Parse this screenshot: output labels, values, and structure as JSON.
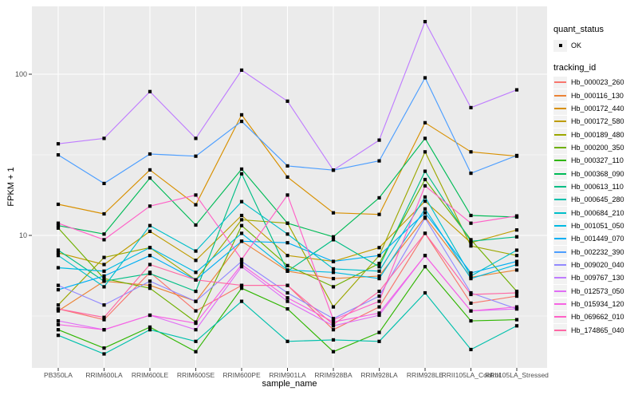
{
  "colors": {
    "panel_bg": "#EBEBEB",
    "grid_major": "#FFFFFF",
    "grid_minor": "#FFFFFF",
    "tick_label": "#4D4D4D",
    "tick_mark": "#333333",
    "point": "#000000",
    "legend_key_bg": "#F2F2F2",
    "text": "#000000"
  },
  "chart_data": {
    "type": "line",
    "title": "",
    "xlabel": "sample_name",
    "ylabel": "FPKM + 1",
    "y_scale": "log10",
    "y_ticks": [
      10,
      100
    ],
    "y_minor": [
      3.1623,
      31.623
    ],
    "ylim": [
      1.5,
      265
    ],
    "grid": true,
    "legend_position": "right",
    "point_shape": "filled-black-square",
    "legend": {
      "quant_status_title": "quant_status",
      "quant_status_items": [
        "OK"
      ],
      "tracking_id_title": "tracking_id"
    },
    "x_categories": [
      "PB350LA",
      "RRIM600LA",
      "RRIM600LE",
      "RRIM600SE",
      "RRIM600PE",
      "RRIM901LA",
      "RRIM928BA",
      "RRIM928LA",
      "RRIM928LE",
      "RRII105LA_Control",
      "RRII105LA_Stressed"
    ],
    "series": [
      {
        "name": "Hb_000023_260",
        "color": "#F8766D",
        "values": [
          3.5,
          3.0,
          5.9,
          3.4,
          4.9,
          4.9,
          2.6,
          3.6,
          10.3,
          3.8,
          4.2
        ]
      },
      {
        "name": "Hb_000116_130",
        "color": "#EB8335",
        "values": [
          3.4,
          5.2,
          4.9,
          3.9,
          9.2,
          6.0,
          5.4,
          5.6,
          13.0,
          5.5,
          6.1
        ]
      },
      {
        "name": "Hb_000172_440",
        "color": "#D89000",
        "values": [
          15.6,
          13.6,
          25.5,
          15.5,
          56,
          23,
          13.8,
          13.5,
          50,
          33,
          31
        ]
      },
      {
        "name": "Hb_000172_580",
        "color": "#BE9C00",
        "values": [
          7.8,
          6.6,
          10.6,
          7.0,
          13.3,
          7.5,
          6.9,
          8.4,
          16.3,
          9.0,
          10.8
        ]
      },
      {
        "name": "Hb_000189_480",
        "color": "#9CA700",
        "values": [
          3.7,
          7.3,
          8.4,
          5.3,
          12.5,
          11.9,
          3.6,
          7.5,
          33,
          8.6,
          7.5
        ]
      },
      {
        "name": "Hb_000200_350",
        "color": "#6FB000",
        "values": [
          11.1,
          5.4,
          4.7,
          2.9,
          11.5,
          6.5,
          4.8,
          6.7,
          22.2,
          9.4,
          4.5
        ]
      },
      {
        "name": "Hb_000327_110",
        "color": "#2FB600",
        "values": [
          2.6,
          2.0,
          2.7,
          1.9,
          4.7,
          3.5,
          1.9,
          2.5,
          6.4,
          2.95,
          3.0
        ]
      },
      {
        "name": "Hb_000368_090",
        "color": "#00BB57",
        "values": [
          11.5,
          10.2,
          22.7,
          11.6,
          25.8,
          11.9,
          9.8,
          17.1,
          40,
          13.3,
          13.0
        ]
      },
      {
        "name": "Hb_000613_110",
        "color": "#00BE85",
        "values": [
          8.1,
          5.2,
          5.8,
          4.5,
          24.1,
          6.0,
          9.4,
          6.4,
          25,
          9.2,
          9.8
        ]
      },
      {
        "name": "Hb_000645_280",
        "color": "#00C0AC",
        "values": [
          2.4,
          1.84,
          2.6,
          2.2,
          3.9,
          2.2,
          2.25,
          2.2,
          4.4,
          1.96,
          2.75
        ]
      },
      {
        "name": "Hb_000684_210",
        "color": "#00BFC9",
        "values": [
          7.5,
          4.8,
          11.5,
          8.0,
          16.2,
          10.2,
          6.2,
          6.0,
          17.3,
          5.6,
          8.1
        ]
      },
      {
        "name": "Hb_001051_050",
        "color": "#00BAE2",
        "values": [
          6.3,
          6.0,
          8.4,
          5.9,
          10.3,
          6.1,
          5.9,
          5.4,
          14.6,
          5.4,
          6.6
        ]
      },
      {
        "name": "Hb_001449_070",
        "color": "#00AFF4",
        "values": [
          4.6,
          5.6,
          7.5,
          5.3,
          9.2,
          9.0,
          6.9,
          7.5,
          13.8,
          5.85,
          6.9
        ]
      },
      {
        "name": "Hb_002232_390",
        "color": "#4C9EFF",
        "values": [
          31.6,
          21,
          32,
          31,
          51,
          27,
          25.4,
          29,
          95,
          24.3,
          31.3
        ]
      },
      {
        "name": "Hb_009020_040",
        "color": "#9289FF",
        "values": [
          4.9,
          3.7,
          5.2,
          3.9,
          6.9,
          4.4,
          3.05,
          4.2,
          12.8,
          4.4,
          3.5
        ]
      },
      {
        "name": "Hb_009767_130",
        "color": "#BF7CFF",
        "values": [
          37,
          40,
          78,
          40,
          106,
          68,
          25.4,
          39,
          212,
          62,
          80
        ]
      },
      {
        "name": "Hb_012573_050",
        "color": "#E06EF6",
        "values": [
          2.95,
          2.6,
          3.2,
          2.6,
          6.4,
          3.9,
          2.75,
          3.2,
          7.5,
          3.4,
          3.5
        ]
      },
      {
        "name": "Hb_015934_120",
        "color": "#F763E3",
        "values": [
          2.8,
          2.6,
          3.2,
          2.85,
          6.6,
          4.1,
          2.9,
          3.3,
          7.5,
          3.4,
          3.6
        ]
      },
      {
        "name": "Hb_069662_010",
        "color": "#FF61C7",
        "values": [
          11.9,
          9.4,
          15.2,
          17.8,
          7.1,
          17.8,
          3.0,
          3.9,
          20.3,
          11.9,
          13.2
        ]
      },
      {
        "name": "Hb_174865_040",
        "color": "#FF68A5",
        "values": [
          3.5,
          3.1,
          6.6,
          5.3,
          4.9,
          4.9,
          2.8,
          4.5,
          10.3,
          4.3,
          4.4
        ]
      }
    ]
  }
}
